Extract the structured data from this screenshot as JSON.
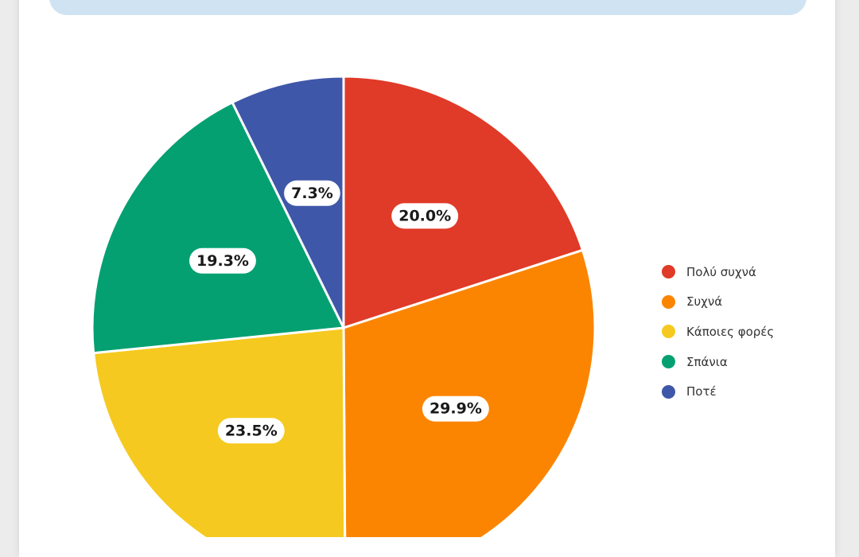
{
  "chart_data": {
    "type": "pie",
    "title": "",
    "categories": [
      "Πολύ συχνά",
      "Συχνά",
      "Κάποιες φορές",
      "Σπάνια",
      "Ποτέ"
    ],
    "values": [
      20.0,
      29.9,
      23.5,
      19.3,
      7.3
    ],
    "labels": [
      "20.0%",
      "29.9%",
      "23.5%",
      "19.3%",
      "7.3%"
    ],
    "colors": [
      "#e03a28",
      "#fb8500",
      "#f5c91f",
      "#04a072",
      "#3f57a8"
    ],
    "start_angle_deg": 0,
    "direction": "clockwise",
    "legend_position": "right"
  }
}
